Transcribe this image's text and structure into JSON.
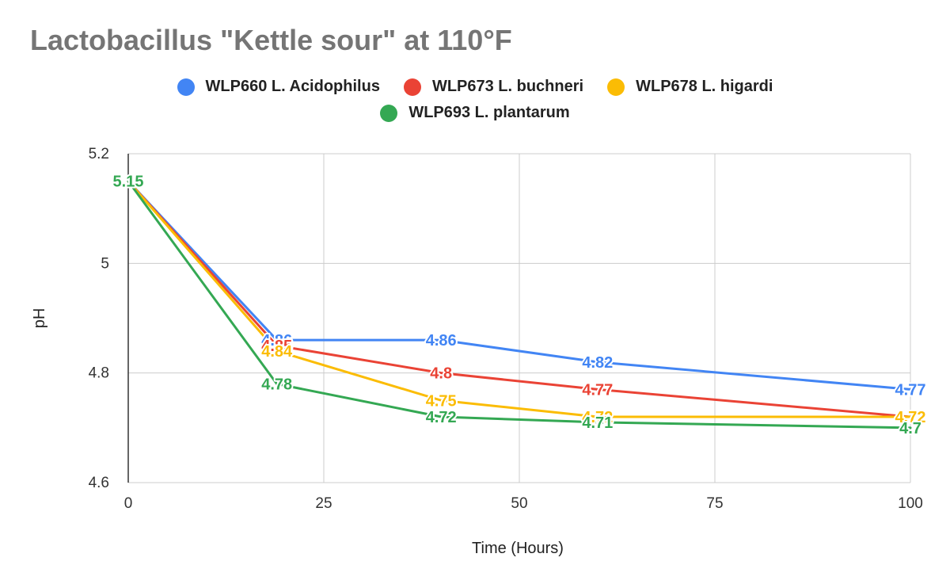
{
  "chart_data": {
    "type": "line",
    "title": "Lactobacillus \"Kettle sour\" at 110°F",
    "xlabel": "Time (Hours)",
    "ylabel": "pH",
    "xlim": [
      0,
      100
    ],
    "ylim": [
      4.6,
      5.2
    ],
    "x_ticks": [
      0,
      25,
      50,
      75,
      100
    ],
    "x_tick_labels": [
      "0",
      "25",
      "50",
      "75",
      "100"
    ],
    "y_ticks": [
      4.6,
      4.8,
      5.0,
      5.2
    ],
    "y_tick_labels": [
      "4.6",
      "4.8",
      "5",
      "5.2"
    ],
    "grid": true,
    "legend_position": "top-center",
    "series": [
      {
        "name": "WLP660 L. Acidophilus",
        "color": "#4285f4",
        "x": [
          0,
          19,
          40,
          60,
          100
        ],
        "values": [
          5.15,
          4.86,
          4.86,
          4.82,
          4.77
        ],
        "labels": [
          "5.15",
          "4.86",
          "4.86",
          "4.82",
          "4.77"
        ]
      },
      {
        "name": "WLP673 L. buchneri",
        "color": "#ea4335",
        "x": [
          0,
          19,
          40,
          60,
          100
        ],
        "values": [
          5.15,
          4.85,
          4.8,
          4.77,
          4.72
        ],
        "labels": [
          "5.15",
          "4.85",
          "4.8",
          "4.77",
          "4.72"
        ]
      },
      {
        "name": "WLP678 L. higardi",
        "color": "#fbbc04",
        "x": [
          0,
          19,
          40,
          60,
          100
        ],
        "values": [
          5.15,
          4.84,
          4.75,
          4.72,
          4.72
        ],
        "labels": [
          "5.15",
          "4.84",
          "4.75",
          "4.72",
          "4.72"
        ]
      },
      {
        "name": "WLP693 L. plantarum",
        "color": "#34a853",
        "x": [
          0,
          19,
          40,
          60,
          100
        ],
        "values": [
          5.15,
          4.78,
          4.72,
          4.71,
          4.7
        ],
        "labels": [
          "5.15",
          "4.78",
          "4.72",
          "4.71",
          "4.7"
        ]
      }
    ]
  }
}
